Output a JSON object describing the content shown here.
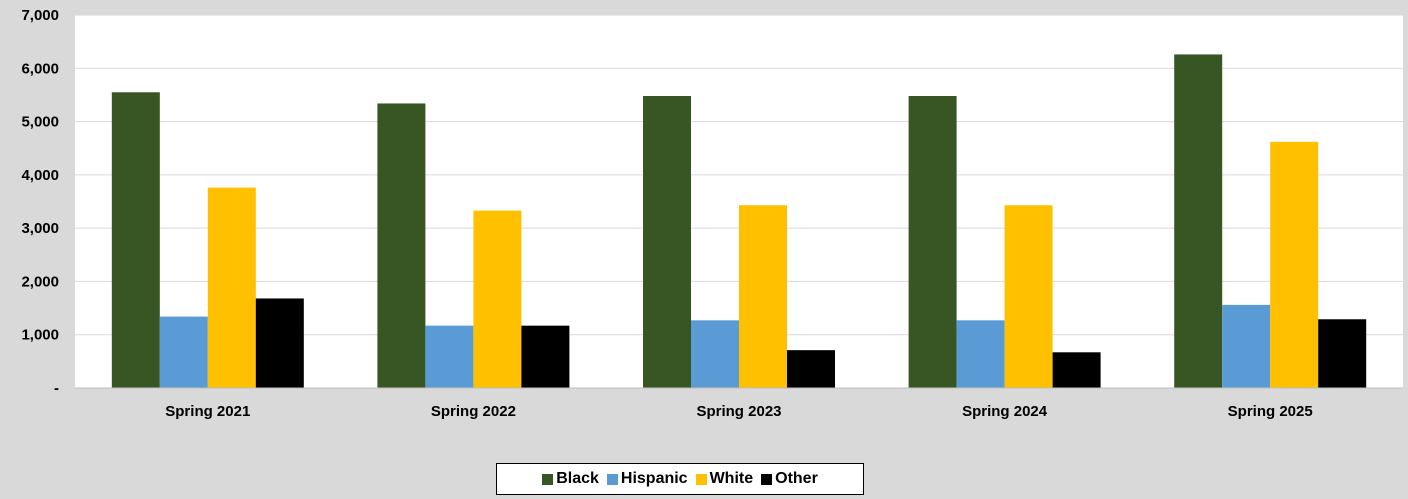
{
  "colors": {
    "background": "#d9d9d9",
    "plot_background": "#ffffff",
    "gridline": "#d9d9d9"
  },
  "chart_data": {
    "type": "bar",
    "title": "",
    "xlabel": "",
    "ylabel": "",
    "categories": [
      "Spring 2021",
      "Spring 2022",
      "Spring 2023",
      "Spring 2024",
      "Spring 2025"
    ],
    "series": [
      {
        "name": "Black",
        "color": "#375623",
        "values": [
          5550,
          5340,
          5480,
          5480,
          6260
        ]
      },
      {
        "name": "Hispanic",
        "color": "#5b9bd5",
        "values": [
          1340,
          1170,
          1270,
          1270,
          1560
        ]
      },
      {
        "name": "White",
        "color": "#ffc000",
        "values": [
          3760,
          3330,
          3430,
          3430,
          4620
        ]
      },
      {
        "name": "Other",
        "color": "#000000",
        "values": [
          1680,
          1170,
          710,
          670,
          1290
        ]
      }
    ],
    "ylim": [
      0,
      7000
    ],
    "yticks": [
      0,
      1000,
      2000,
      3000,
      4000,
      5000,
      6000,
      7000
    ],
    "ytick_labels": [
      "-",
      "1,000",
      "2,000",
      "3,000",
      "4,000",
      "5,000",
      "6,000",
      "7,000"
    ],
    "grid": true,
    "legend_position": "bottom"
  }
}
